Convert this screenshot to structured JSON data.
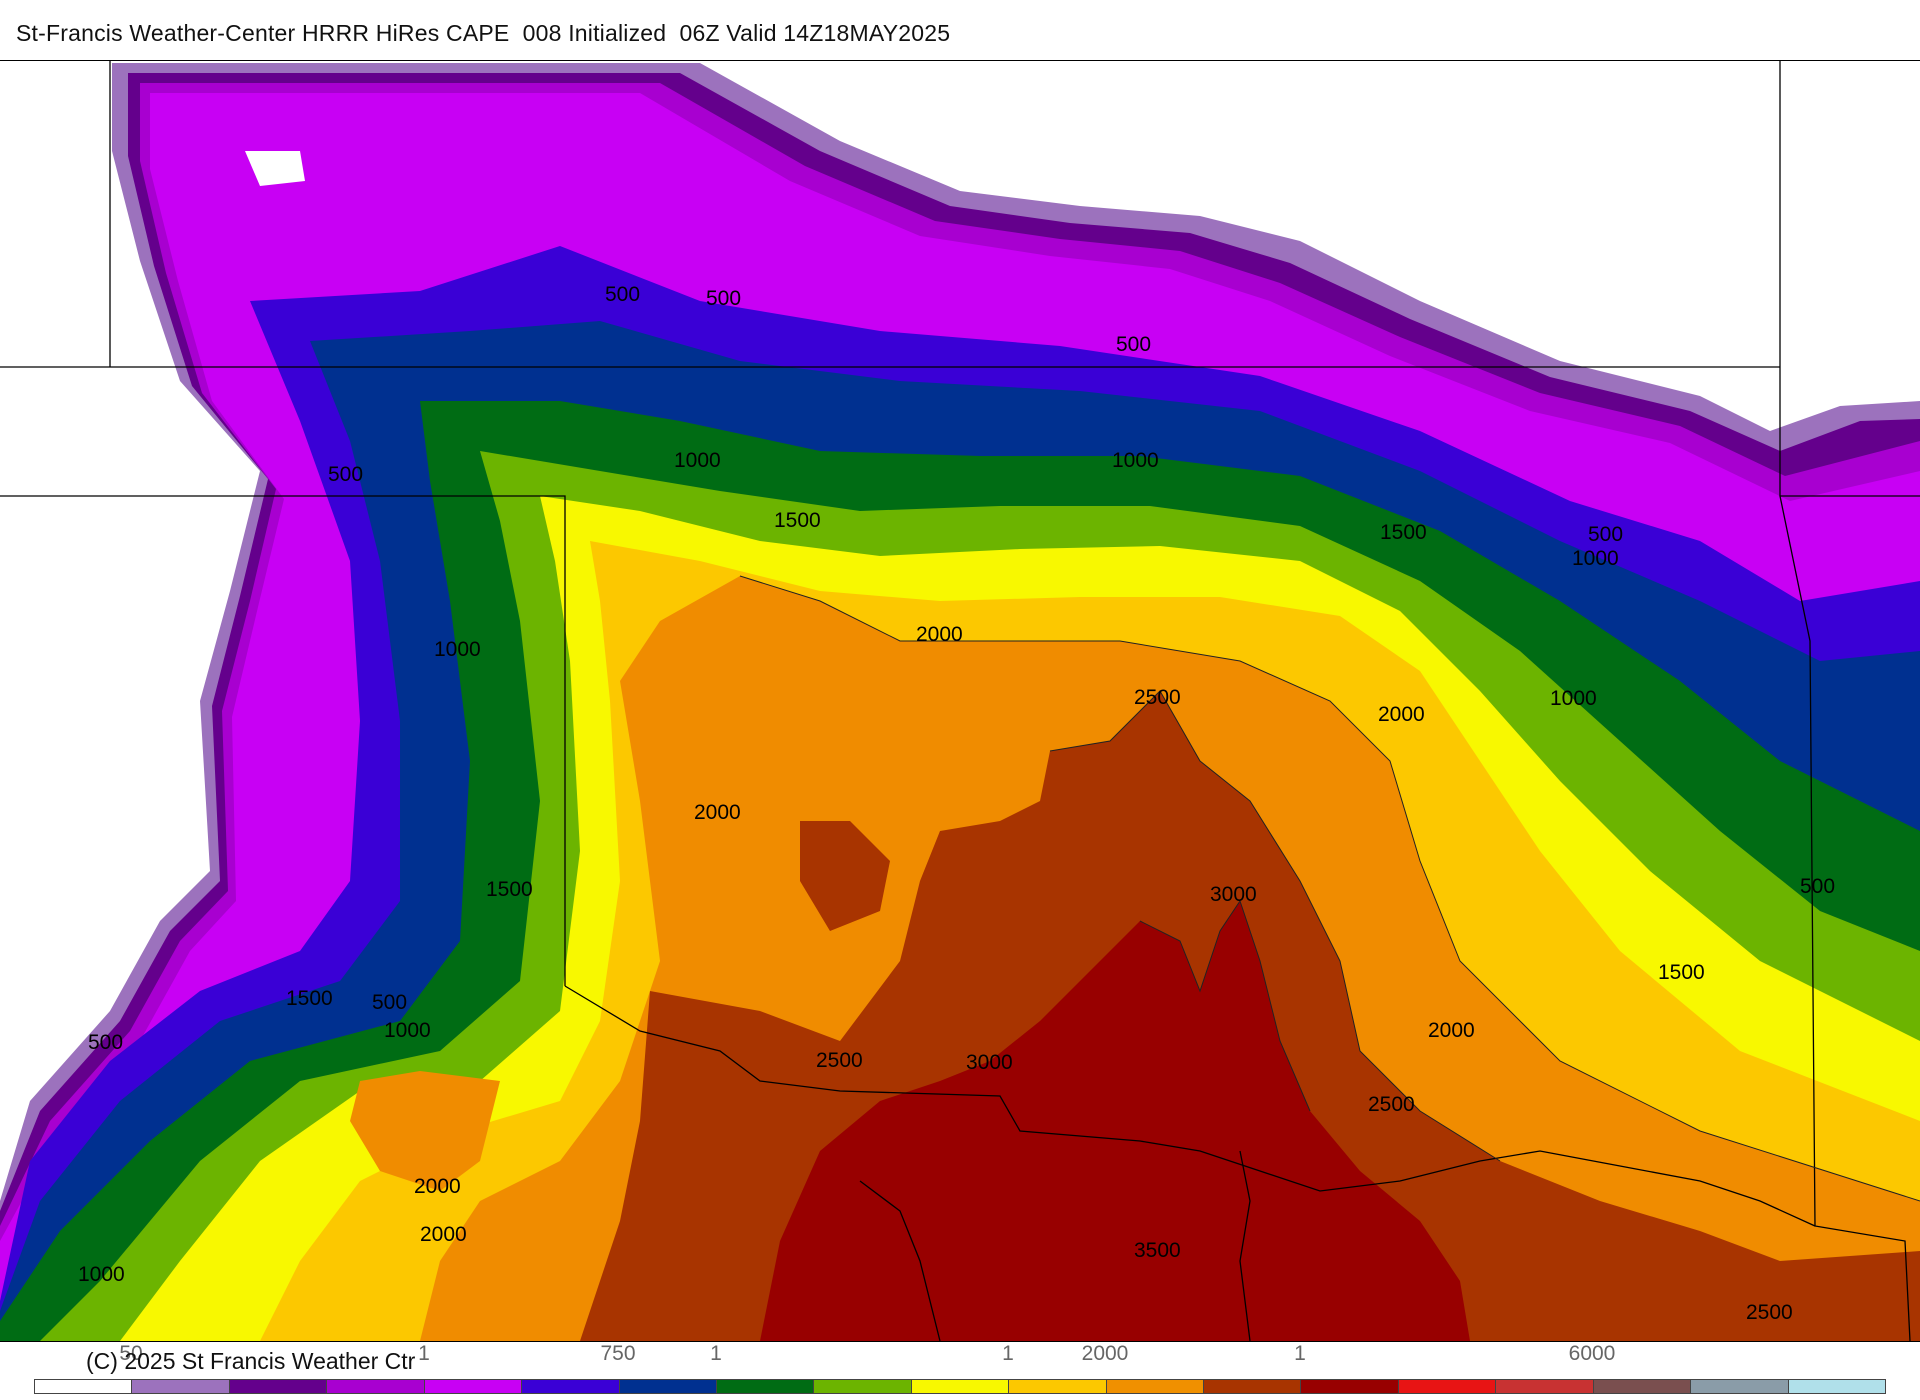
{
  "header": {
    "title": "St-Francis Weather-Center HRRR HiRes CAPE  008 Initialized  06Z Valid 14Z18MAY2025"
  },
  "map": {
    "field": "CAPE",
    "contour_labels": [
      "500",
      "500",
      "500",
      "500",
      "500",
      "500",
      "500",
      "500",
      "1000",
      "1000",
      "1000",
      "1000",
      "1000",
      "1000",
      "1000",
      "1500",
      "1500",
      "1500",
      "1500",
      "1500",
      "1500",
      "2000",
      "2000",
      "2000",
      "2000",
      "2000",
      "2000",
      "2000",
      "2500",
      "2500",
      "2500",
      "2500",
      "3000",
      "3000",
      "3500"
    ],
    "colors": {
      "c50": "#9c72bd",
      "c100": "#64008c",
      "c250": "#a800d0",
      "c500": "#c800f4",
      "c750": "#3a00d6",
      "c1000": "#003090",
      "c1250": "#006c14",
      "c1500": "#6cb400",
      "c1750": "#f8f800",
      "c2000": "#fcc800",
      "c2250": "#f09000",
      "c2500": "#a83400",
      "c3000": "#980000"
    }
  },
  "footer": {
    "copyright": "(C) 2025 St Francis Weather Ctr"
  },
  "legend": {
    "tick_labels": [
      "50",
      "1",
      "750",
      "1",
      "1",
      "2000",
      "1",
      "6000"
    ],
    "colors": [
      "#ffffff",
      "#9c72bd",
      "#64008c",
      "#a800d0",
      "#c800f4",
      "#3a00d6",
      "#003090",
      "#006c14",
      "#6cb400",
      "#f8f800",
      "#fcc800",
      "#f09000",
      "#a83400",
      "#980000",
      "#e81414",
      "#c83232",
      "#7a4f4f",
      "#8a9ca8",
      "#b0e0ea"
    ]
  }
}
